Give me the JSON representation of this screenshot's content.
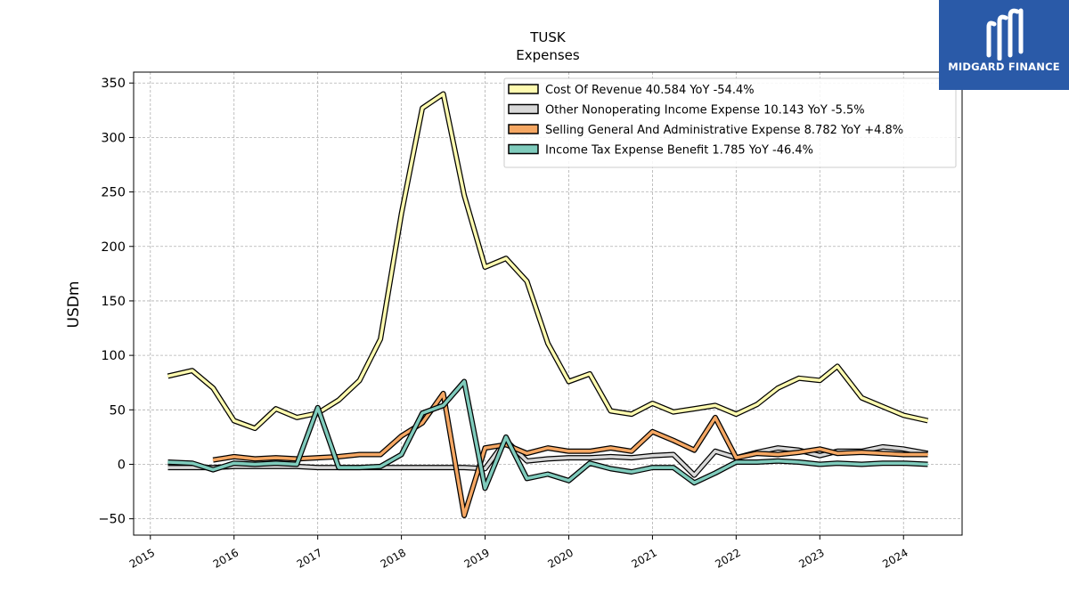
{
  "brand": {
    "name": "MIDGARD FINANCE",
    "color": "#2a5aa8",
    "logo_icon": "midgard-m-logo-icon"
  },
  "chart_data": {
    "type": "line",
    "title": "TUSK",
    "subtitle": "Expenses",
    "xlabel": "",
    "ylabel": "USDm",
    "xlim": [
      2014.8,
      2024.7
    ],
    "ylim": [
      -65,
      360
    ],
    "yticks": [
      -50,
      0,
      50,
      100,
      150,
      200,
      250,
      300,
      350
    ],
    "xticks": [
      2015,
      2016,
      2017,
      2018,
      2019,
      2020,
      2021,
      2022,
      2023,
      2024
    ],
    "grid": true,
    "legend_position": "top-right",
    "series": [
      {
        "name": "Cost Of Revenue  40.584 YoY -54.4%",
        "color": "#fffbb0",
        "x": [
          2015.21,
          2015.5,
          2015.75,
          2016.0,
          2016.25,
          2016.5,
          2016.75,
          2017.0,
          2017.25,
          2017.5,
          2017.75,
          2018.0,
          2018.25,
          2018.5,
          2018.75,
          2019.0,
          2019.25,
          2019.5,
          2019.75,
          2020.0,
          2020.25,
          2020.5,
          2020.75,
          2021.0,
          2021.25,
          2021.5,
          2021.75,
          2022.0,
          2022.25,
          2022.5,
          2022.75,
          2023.0,
          2023.21,
          2023.5,
          2023.75,
          2024.0,
          2024.29
        ],
        "values": [
          81,
          86,
          70,
          40,
          33,
          51,
          43,
          47,
          59,
          77,
          115,
          230,
          327,
          340,
          247,
          181,
          189,
          168,
          111,
          76,
          83,
          49,
          46,
          56,
          48,
          51,
          54,
          46,
          55,
          70,
          79,
          77,
          90,
          61,
          53,
          45,
          40
        ]
      },
      {
        "name": "Other Nonoperating Income Expense  10.143 YoY -5.5%",
        "color": "#d8d8d8",
        "x": [
          2015.21,
          2015.5,
          2015.75,
          2016.0,
          2016.25,
          2016.5,
          2016.75,
          2017.0,
          2017.25,
          2017.5,
          2017.75,
          2018.0,
          2018.25,
          2018.5,
          2018.75,
          2019.0,
          2019.25,
          2019.5,
          2019.75,
          2020.0,
          2020.25,
          2020.5,
          2020.75,
          2021.0,
          2021.25,
          2021.5,
          2021.75,
          2022.0,
          2022.25,
          2022.5,
          2022.75,
          2023.0,
          2023.21,
          2023.5,
          2023.75,
          2024.0,
          2024.29
        ],
        "values": [
          -3,
          -3,
          -3,
          -2,
          -2,
          -2,
          -2,
          -3,
          -3,
          -3,
          -3,
          -3,
          -3,
          -3,
          -3,
          -4,
          22,
          3,
          5,
          6,
          6,
          7,
          6,
          8,
          9,
          -10,
          12,
          6,
          11,
          15,
          13,
          8,
          12,
          12,
          16,
          14,
          10
        ]
      },
      {
        "name": "Selling General And Administrative Expense  8.782 YoY +4.8%",
        "color": "#f5a763",
        "x": [
          2015.75,
          2016.0,
          2016.25,
          2016.5,
          2016.75,
          2017.0,
          2017.25,
          2017.5,
          2017.75,
          2018.0,
          2018.25,
          2018.5,
          2018.75,
          2019.0,
          2019.25,
          2019.5,
          2019.75,
          2020.0,
          2020.25,
          2020.5,
          2020.75,
          2021.0,
          2021.25,
          2021.5,
          2021.75,
          2022.0,
          2022.25,
          2022.5,
          2022.75,
          2023.0,
          2023.21,
          2023.5,
          2023.75,
          2024.0,
          2024.29
        ],
        "values": [
          4,
          7,
          5,
          6,
          5,
          6,
          7,
          9,
          9,
          26,
          38,
          65,
          -47,
          15,
          18,
          10,
          15,
          12,
          12,
          15,
          12,
          30,
          22,
          13,
          43,
          6,
          10,
          9,
          11,
          14,
          10,
          11,
          10,
          9,
          9
        ]
      },
      {
        "name": "Income Tax Expense Benefit  1.785 YoY -46.4%",
        "color": "#7fcbbc",
        "x": [
          2015.21,
          2015.5,
          2015.75,
          2016.0,
          2016.25,
          2016.5,
          2016.75,
          2017.0,
          2017.25,
          2017.5,
          2017.75,
          2018.0,
          2018.25,
          2018.5,
          2018.75,
          2019.0,
          2019.25,
          2019.5,
          2019.75,
          2020.0,
          2020.25,
          2020.5,
          2020.75,
          2021.0,
          2021.25,
          2021.5,
          2021.75,
          2022.0,
          2022.25,
          2022.5,
          2022.75,
          2023.0,
          2023.21,
          2023.5,
          2023.75,
          2024.0,
          2024.29
        ],
        "values": [
          2,
          1,
          -5,
          1,
          0,
          1,
          0,
          52,
          -3,
          -3,
          -2,
          9,
          47,
          54,
          76,
          -22,
          25,
          -13,
          -9,
          -15,
          1,
          -4,
          -7,
          -3,
          -3,
          -17,
          -8,
          2,
          2,
          3,
          2,
          0,
          1,
          0,
          1,
          1,
          0
        ]
      }
    ]
  }
}
